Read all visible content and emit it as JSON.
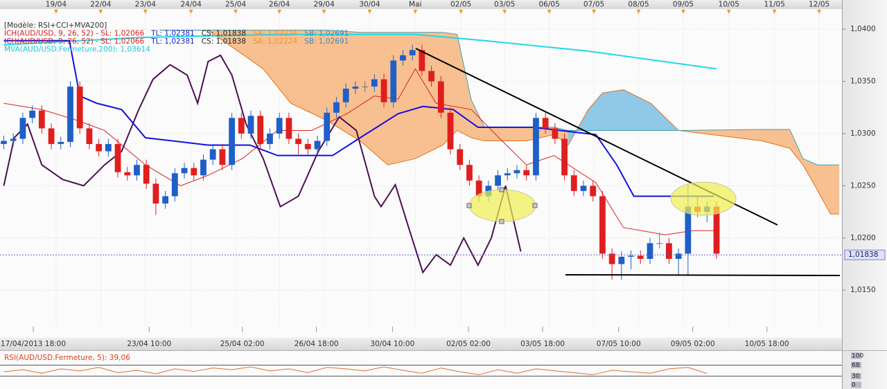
{
  "chart_data": [
    {
      "type": "candlestick",
      "legend": [
        [
          {
            "text": "[Modèle: RSI+CCI+MVA200]",
            "color": "#333333"
          }
        ],
        [
          {
            "text": "ICH(AUD/USD, 9, 26, 52) -  SL: 1,02066",
            "color": "#d42020"
          },
          {
            "text": "TL: 1,02381",
            "color": "#1a1adc"
          },
          {
            "text": "CS: 1,01838",
            "color": "#222222"
          },
          {
            "text": "SA: 1,02224",
            "color": "#f09030"
          },
          {
            "text": "SB: 1,02691",
            "color": "#3a8ac0"
          }
        ],
        [
          {
            "text": "ICH(AUD/USD, 9, 26, 52) -  SL: 1,02066",
            "color": "#d42020"
          },
          {
            "text": "TL: 1,02381",
            "color": "#1a1adc"
          },
          {
            "text": "CS: 1,01838",
            "color": "#222222"
          },
          {
            "text": "SA: 1,02224",
            "color": "#f09030"
          },
          {
            "text": "SB: 1,02691",
            "color": "#3a8ac0"
          }
        ],
        [
          {
            "text": "MVA(AUD/USD.Fermeture,200): 1,03614",
            "color": "#20c8d8"
          }
        ]
      ],
      "up_color": "#1e5fc8",
      "down_color": "#e01e1e",
      "flat_color": "#707070",
      "candles": [
        [
          1.029,
          1.0298,
          1.0285,
          1.0293
        ],
        [
          1.0293,
          1.03,
          1.0288,
          1.0295
        ],
        [
          1.0295,
          1.032,
          1.029,
          1.0315
        ],
        [
          1.0315,
          1.0327,
          1.031,
          1.0322
        ],
        [
          1.0322,
          1.0327,
          1.03,
          1.0305
        ],
        [
          1.0305,
          1.031,
          1.0285,
          1.029
        ],
        [
          1.029,
          1.0297,
          1.0285,
          1.0292
        ],
        [
          1.0292,
          1.035,
          1.0287,
          1.0345
        ],
        [
          1.0345,
          1.035,
          1.03,
          1.0305
        ],
        [
          1.0305,
          1.031,
          1.0285,
          1.029
        ],
        [
          1.029,
          1.0295,
          1.0278,
          1.0283
        ],
        [
          1.0283,
          1.0295,
          1.0278,
          1.029
        ],
        [
          1.029,
          1.0295,
          1.0258,
          1.0263
        ],
        [
          1.0263,
          1.0268,
          1.0255,
          1.026
        ],
        [
          1.026,
          1.0275,
          1.0255,
          1.027
        ],
        [
          1.027,
          1.0275,
          1.0247,
          1.0252
        ],
        [
          1.0252,
          1.0257,
          1.0222,
          1.0233
        ],
        [
          1.0233,
          1.0245,
          1.0228,
          1.024
        ],
        [
          1.024,
          1.0267,
          1.0235,
          1.0262
        ],
        [
          1.0262,
          1.0272,
          1.0257,
          1.0267
        ],
        [
          1.0267,
          1.0272,
          1.0255,
          1.026
        ],
        [
          1.026,
          1.028,
          1.0255,
          1.0275
        ],
        [
          1.0275,
          1.029,
          1.027,
          1.0285
        ],
        [
          1.0285,
          1.029,
          1.0265,
          1.027
        ],
        [
          1.027,
          1.032,
          1.0265,
          1.0315
        ],
        [
          1.0315,
          1.032,
          1.0295,
          1.03
        ],
        [
          1.03,
          1.0322,
          1.0295,
          1.0317
        ],
        [
          1.0317,
          1.0322,
          1.0285,
          1.029
        ],
        [
          1.029,
          1.0305,
          1.0285,
          1.03
        ],
        [
          1.03,
          1.032,
          1.0295,
          1.0315
        ],
        [
          1.0315,
          1.032,
          1.029,
          1.0295
        ],
        [
          1.0295,
          1.03,
          1.028,
          1.029
        ],
        [
          1.029,
          1.0295,
          1.028,
          1.0285
        ],
        [
          1.0285,
          1.0298,
          1.028,
          1.0293
        ],
        [
          1.0293,
          1.0325,
          1.0288,
          1.032
        ],
        [
          1.032,
          1.0335,
          1.0315,
          1.033
        ],
        [
          1.033,
          1.0348,
          1.0325,
          1.0343
        ],
        [
          1.0343,
          1.035,
          1.0338,
          1.0345
        ],
        [
          1.0345,
          1.035,
          1.034,
          1.0345
        ],
        [
          1.0345,
          1.0357,
          1.034,
          1.0352
        ],
        [
          1.0352,
          1.0357,
          1.0325,
          1.033
        ],
        [
          1.033,
          1.0375,
          1.0325,
          1.037
        ],
        [
          1.037,
          1.038,
          1.0365,
          1.0375
        ],
        [
          1.0375,
          1.0385,
          1.037,
          1.038
        ],
        [
          1.038,
          1.0385,
          1.0355,
          1.036
        ],
        [
          1.036,
          1.0365,
          1.0345,
          1.035
        ],
        [
          1.035,
          1.0355,
          1.0315,
          1.032
        ],
        [
          1.032,
          1.0325,
          1.028,
          1.0285
        ],
        [
          1.0285,
          1.029,
          1.0265,
          1.027
        ],
        [
          1.027,
          1.0275,
          1.025,
          1.0255
        ],
        [
          1.0255,
          1.026,
          1.0235,
          1.024
        ],
        [
          1.024,
          1.0255,
          1.0235,
          1.025
        ],
        [
          1.025,
          1.0265,
          1.0245,
          1.026
        ],
        [
          1.026,
          1.0267,
          1.0255,
          1.0262
        ],
        [
          1.0262,
          1.027,
          1.0257,
          1.0265
        ],
        [
          1.0265,
          1.027,
          1.0255,
          1.026
        ],
        [
          1.026,
          1.032,
          1.0255,
          1.0315
        ],
        [
          1.0315,
          1.032,
          1.03,
          1.0305
        ],
        [
          1.0305,
          1.031,
          1.029,
          1.0295
        ],
        [
          1.0295,
          1.03,
          1.0255,
          1.026
        ],
        [
          1.026,
          1.0265,
          1.024,
          1.0245
        ],
        [
          1.0245,
          1.0255,
          1.024,
          1.025
        ],
        [
          1.025,
          1.0255,
          1.0235,
          1.024
        ],
        [
          1.024,
          1.0245,
          1.018,
          1.0185
        ],
        [
          1.0185,
          1.019,
          1.016,
          1.0175
        ],
        [
          1.0175,
          1.0187,
          1.016,
          1.0182
        ],
        [
          1.0182,
          1.0188,
          1.017,
          1.0183
        ],
        [
          1.0183,
          1.0188,
          1.0175,
          1.018
        ],
        [
          1.018,
          1.02,
          1.0175,
          1.0195
        ],
        [
          1.0195,
          1.0205,
          1.019,
          1.0195
        ],
        [
          1.0195,
          1.02,
          1.0175,
          1.018
        ],
        [
          1.018,
          1.019,
          1.0165,
          1.0185
        ],
        [
          1.0185,
          1.0252,
          1.0165,
          1.023
        ],
        [
          1.023,
          1.024,
          1.022,
          1.0225
        ],
        [
          1.0225,
          1.0235,
          1.0215,
          1.023
        ],
        [
          1.023,
          1.0235,
          1.018,
          1.0185
        ]
      ],
      "cloud": {
        "up_color": "#f8c090",
        "down_color": "#90c8e8",
        "edge_a": "#e07020",
        "edge_b": "#40a0b0",
        "x": [
          16.4,
          21.5,
          27.3,
          30.2,
          33.9,
          37.5,
          40.4,
          43.3,
          46.2,
          47.7,
          49.2,
          50.6,
          55.0,
          57.9,
          59.4,
          61.5,
          63.0,
          65.2,
          68.1,
          71.0,
          79.8,
          82.7,
          84.1,
          85.6,
          87.0,
          87.9
        ],
        "span_a": [
          1.0399,
          1.0399,
          1.0362,
          1.0329,
          1.0313,
          1.0293,
          1.027,
          1.0276,
          1.0289,
          1.0303,
          1.0296,
          1.0293,
          1.0293,
          1.0299,
          1.0289,
          1.0323,
          1.0339,
          1.0342,
          1.0329,
          1.0303,
          1.0293,
          1.0286,
          1.027,
          1.0246,
          1.0223,
          1.0223
        ],
        "span_b": [
          1.0399,
          1.0399,
          1.0399,
          1.0399,
          1.0399,
          1.0397,
          1.0397,
          1.0397,
          1.0397,
          1.0395,
          1.0332,
          1.0306,
          1.0306,
          1.0306,
          1.0303,
          1.0303,
          1.0303,
          1.0303,
          1.0303,
          1.0303,
          1.0304,
          1.0304,
          1.0276,
          1.027,
          1.027,
          1.027
        ]
      },
      "overlays": [
        {
          "color": "#20d8e8",
          "width": 2,
          "x": [
            0,
            14.2,
            28.8,
            43.3,
            50.6,
            61.5,
            75.0
          ],
          "values": [
            1.0385,
            1.0392,
            1.0395,
            1.0395,
            1.0389,
            1.0379,
            1.0362
          ]
        },
        {
          "color": "#e02020",
          "width": 1,
          "x": [
            0,
            4.0,
            7.6,
            10.6,
            14.9,
            18.6,
            21.5,
            25.1,
            28.8,
            32.4,
            36.1,
            39.0,
            41.5,
            43.3,
            45.5,
            49.2,
            52.1,
            55.0,
            57.9,
            62.3,
            65.2,
            69.6,
            72.5,
            75.0
          ],
          "values": [
            1.0329,
            1.0323,
            1.0313,
            1.0303,
            1.027,
            1.025,
            1.026,
            1.0276,
            1.0303,
            1.0303,
            1.0319,
            1.0336,
            1.0333,
            1.0362,
            1.0329,
            1.0323,
            1.0296,
            1.027,
            1.0279,
            1.0253,
            1.021,
            1.0203,
            1.0207,
            1.0207
          ]
        },
        {
          "color": "#1010e0",
          "width": 2,
          "x": [
            0,
            6.9,
            8.0,
            9.8,
            12.4,
            14.9,
            21.5,
            25.9,
            28.8,
            34.6,
            37.5,
            41.5,
            44.1,
            47.3,
            49.9,
            55.7,
            62.3,
            64.5,
            66.3,
            74.7
          ],
          "values": [
            1.0389,
            1.0389,
            1.0336,
            1.0329,
            1.0323,
            1.0296,
            1.0289,
            1.0289,
            1.0279,
            1.0279,
            1.0296,
            1.0319,
            1.0326,
            1.0323,
            1.0306,
            1.0306,
            1.0299,
            1.027,
            1.024,
            1.024
          ]
        },
        {
          "color": "#4a1050",
          "width": 2,
          "x": [
            0,
            1.1,
            2.5,
            4.0,
            6.2,
            8.4,
            10.6,
            12.4,
            14.2,
            15.7,
            17.5,
            19.3,
            20.4,
            21.5,
            22.8,
            24.0,
            25.5,
            27.3,
            29.1,
            31.0,
            33.1,
            35.3,
            37.1,
            39.0,
            39.7,
            41.2,
            42.6,
            44.1,
            45.5,
            47.0,
            48.4,
            49.9,
            51.3,
            52.8,
            54.4
          ],
          "values": [
            1.025,
            1.0296,
            1.0309,
            1.027,
            1.0256,
            1.025,
            1.027,
            1.0283,
            1.0323,
            1.0352,
            1.0366,
            1.0356,
            1.0329,
            1.0369,
            1.0375,
            1.0356,
            1.0309,
            1.0276,
            1.023,
            1.024,
            1.0283,
            1.0316,
            1.0303,
            1.024,
            1.023,
            1.0251,
            1.021,
            1.0167,
            1.0184,
            1.0174,
            1.02,
            1.0174,
            1.02,
            1.025,
            1.0187
          ]
        }
      ],
      "last_price": {
        "value": 1.01838,
        "label": "1,01838"
      },
      "xlim": [
        -0.4,
        88.2
      ],
      "ylim": [
        1.0115,
        1.042
      ],
      "yticks": [
        {
          "value": 1.04,
          "label": "1,0400"
        },
        {
          "value": 1.035,
          "label": "1,0350"
        },
        {
          "value": 1.03,
          "label": "1,0300"
        },
        {
          "value": 1.025,
          "label": "1,0250"
        },
        {
          "value": 1.02,
          "label": "1,0200"
        },
        {
          "value": 1.015,
          "label": "1,0150"
        }
      ],
      "xticks_top": [
        {
          "value": 5.5,
          "label": "19/04"
        },
        {
          "value": 10.2,
          "label": "22/04"
        },
        {
          "value": 14.9,
          "label": "23/04"
        },
        {
          "value": 19.7,
          "label": "24/04"
        },
        {
          "value": 24.4,
          "label": "25/04"
        },
        {
          "value": 29.0,
          "label": "26/04"
        },
        {
          "value": 33.7,
          "label": "29/04"
        },
        {
          "value": 38.5,
          "label": "30/04"
        },
        {
          "value": 43.3,
          "label": "Mai"
        },
        {
          "value": 48.1,
          "label": "02/05"
        },
        {
          "value": 52.7,
          "label": "03/05"
        },
        {
          "value": 57.4,
          "label": "06/05"
        },
        {
          "value": 62.1,
          "label": "07/05"
        },
        {
          "value": 66.8,
          "label": "08/05"
        },
        {
          "value": 71.5,
          "label": "09/05"
        },
        {
          "value": 76.3,
          "label": "10/05"
        },
        {
          "value": 81.1,
          "label": "11/05"
        },
        {
          "value": 85.8,
          "label": "12/05"
        }
      ],
      "xticks_bottom": [
        {
          "value": 3.1,
          "label": "17/04/2013 18:00"
        },
        {
          "value": 15.3,
          "label": "23/04 10:00"
        },
        {
          "value": 25.1,
          "label": "25/04 02:00"
        },
        {
          "value": 32.9,
          "label": "26/04 18:00"
        },
        {
          "value": 40.9,
          "label": "30/04 10:00"
        },
        {
          "value": 48.9,
          "label": "02/05 02:00"
        },
        {
          "value": 56.7,
          "label": "03/05 18:00"
        },
        {
          "value": 64.7,
          "label": "07/05 10:00"
        },
        {
          "value": 72.5,
          "label": "09/05 02:00"
        },
        {
          "value": 80.3,
          "label": "10/05 18:00"
        }
      ],
      "grid": true
    },
    {
      "type": "line",
      "title": "RSI(AUD/USD.Fermeture, 5): 39,06",
      "title_color": "#e04020",
      "color": "#e07030",
      "x": [
        0,
        2,
        4,
        6,
        8,
        10,
        12,
        14,
        16,
        18,
        20,
        22,
        24,
        26,
        28,
        30,
        32,
        34,
        36,
        38,
        40,
        42,
        44,
        46,
        48,
        50,
        52,
        54,
        56,
        58,
        60,
        62,
        64,
        66,
        68,
        70,
        72,
        74
      ],
      "values": [
        45,
        52,
        40,
        55,
        48,
        60,
        42,
        50,
        38,
        55,
        46,
        58,
        52,
        62,
        48,
        55,
        42,
        60,
        55,
        48,
        62,
        50,
        40,
        58,
        45,
        35,
        52,
        40,
        55,
        48,
        42,
        35,
        50,
        45,
        40,
        55,
        60,
        39
      ],
      "xlim": [
        -0.4,
        88.2
      ],
      "ylim": [
        0,
        100
      ],
      "yticks": [
        100,
        68,
        30,
        0
      ],
      "levels": [
        68,
        30
      ]
    }
  ]
}
